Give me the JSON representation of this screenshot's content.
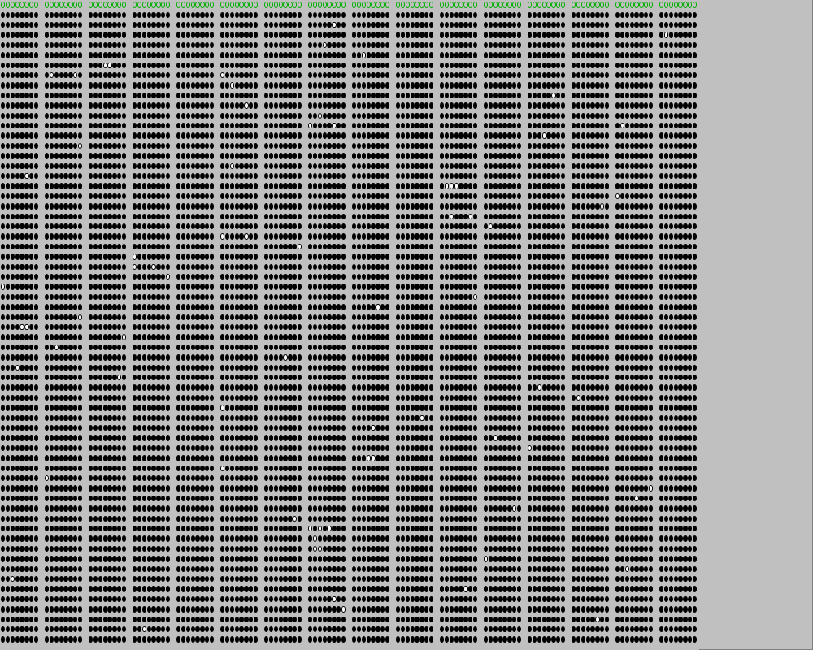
{
  "window": {
    "title": ""
  },
  "colors": {
    "background": "#c0c0c0",
    "lit": "#000000",
    "unlit": "#ffffff",
    "status_ring": "#00b000"
  },
  "board": {
    "groups": 16,
    "bits_per_group": 8,
    "rows": 64,
    "header_row": "status",
    "header_state": "all-off",
    "unlit_cells": [
      [
        2,
        7,
        [
          6
        ]
      ],
      [
        7,
        5,
        [
          1
        ]
      ],
      [
        3,
        15,
        [
          2
        ]
      ],
      [
        4,
        7,
        [
          4
        ]
      ],
      [
        5,
        8,
        [
          3
        ]
      ],
      [
        6,
        2,
        [
          4,
          5
        ]
      ],
      [
        7,
        1,
        [
          2,
          7
        ]
      ],
      [
        8,
        5,
        [
          3
        ]
      ],
      [
        9,
        12,
        [
          6
        ]
      ],
      [
        10,
        5,
        [
          6
        ]
      ],
      [
        11,
        7,
        [
          3
        ]
      ],
      [
        12,
        7,
        [
          1,
          6
        ]
      ],
      [
        12,
        14,
        [
          2
        ]
      ],
      [
        13,
        12,
        [
          4
        ]
      ],
      [
        14,
        1,
        [
          8
        ]
      ],
      [
        16,
        5,
        [
          3
        ]
      ],
      [
        17,
        0,
        [
          6
        ]
      ],
      [
        18,
        10,
        [
          2,
          3,
          4
        ]
      ],
      [
        19,
        14,
        [
          1
        ]
      ],
      [
        20,
        13,
        [
          7
        ]
      ],
      [
        21,
        10,
        [
          3,
          7
        ]
      ],
      [
        22,
        11,
        [
          2
        ]
      ],
      [
        23,
        5,
        [
          1,
          6
        ]
      ],
      [
        24,
        6,
        [
          8
        ]
      ],
      [
        25,
        3,
        [
          1
        ]
      ],
      [
        26,
        3,
        [
          1,
          5
        ]
      ],
      [
        27,
        3,
        [
          8
        ]
      ],
      [
        28,
        0,
        [
          1
        ]
      ],
      [
        29,
        10,
        [
          8
        ]
      ],
      [
        30,
        8,
        [
          6
        ]
      ],
      [
        31,
        1,
        [
          8
        ]
      ],
      [
        32,
        0,
        [
          5,
          6
        ]
      ],
      [
        33,
        2,
        [
          8
        ]
      ],
      [
        34,
        1,
        [
          3
        ]
      ],
      [
        35,
        6,
        [
          5
        ]
      ],
      [
        36,
        0,
        [
          4
        ]
      ],
      [
        37,
        2,
        [
          7
        ]
      ],
      [
        38,
        12,
        [
          3
        ]
      ],
      [
        39,
        13,
        [
          2
        ]
      ],
      [
        40,
        5,
        [
          1
        ]
      ],
      [
        41,
        9,
        [
          6
        ]
      ],
      [
        42,
        8,
        [
          5
        ]
      ],
      [
        43,
        11,
        [
          3
        ]
      ],
      [
        44,
        12,
        [
          1
        ]
      ],
      [
        45,
        8,
        [
          4,
          5
        ]
      ],
      [
        46,
        5,
        [
          1
        ]
      ],
      [
        47,
        1,
        [
          1
        ]
      ],
      [
        48,
        14,
        [
          8
        ]
      ],
      [
        49,
        14,
        [
          5
        ]
      ],
      [
        50,
        11,
        [
          7
        ]
      ],
      [
        51,
        6,
        [
          7
        ]
      ],
      [
        52,
        7,
        [
          1,
          3,
          5
        ]
      ],
      [
        53,
        7,
        [
          2
        ]
      ],
      [
        54,
        7,
        [
          2,
          3
        ]
      ],
      [
        55,
        11,
        [
          1
        ]
      ],
      [
        56,
        14,
        [
          3
        ]
      ],
      [
        57,
        0,
        [
          3
        ]
      ],
      [
        58,
        10,
        [
          6
        ]
      ],
      [
        59,
        7,
        [
          6
        ]
      ],
      [
        60,
        7,
        [
          8
        ]
      ],
      [
        61,
        13,
        [
          6
        ]
      ],
      [
        62,
        3,
        [
          3
        ]
      ]
    ]
  }
}
